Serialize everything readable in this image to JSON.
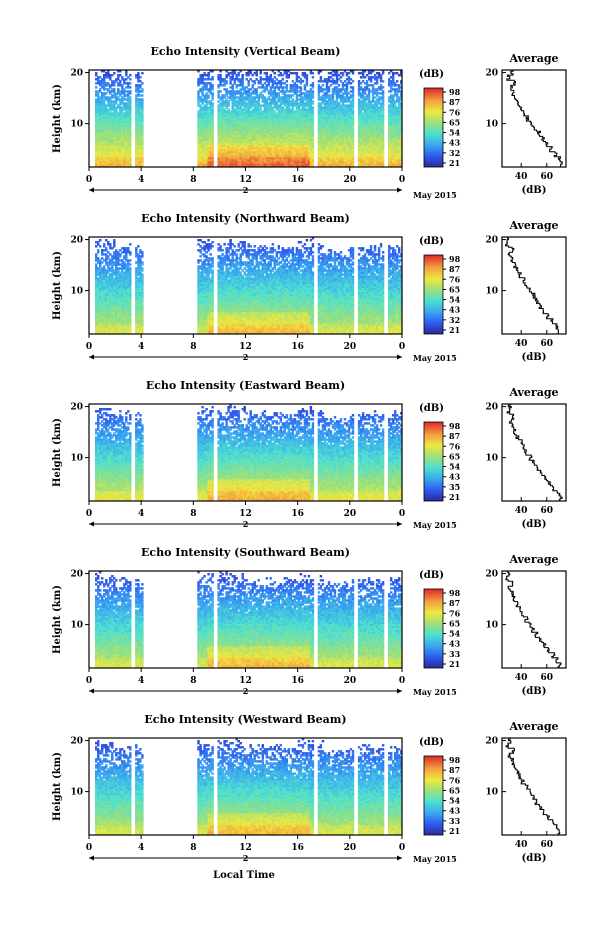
{
  "figure": {
    "date_label": "May 2015",
    "xlabel": "Local Time",
    "day_label": "2"
  },
  "chart_data": [
    {
      "type": "heatmap",
      "title": "Echo Intensity (Vertical Beam)",
      "ylabel": "Height (km)",
      "x_ticks": [
        "0",
        "4",
        "8",
        "12",
        "16",
        "20",
        "0"
      ],
      "y_ticks": [
        "10",
        "20"
      ],
      "xlim": [
        0,
        24
      ],
      "ylim": [
        1.5,
        20.5
      ],
      "colorbar": {
        "unit": "(dB)",
        "ticks": [
          "98",
          "87",
          "76",
          "65",
          "54",
          "43",
          "32",
          "21"
        ],
        "range": [
          21,
          98
        ]
      },
      "profile": {
        "title": "Average",
        "xlabel": "(dB)",
        "x_ticks": [
          "40",
          "60"
        ],
        "y_ticks": [
          "10",
          "20"
        ],
        "xlim": [
          25,
          75
        ],
        "heights": [
          2,
          3,
          4,
          5,
          6,
          7,
          8,
          9,
          10,
          11,
          12,
          13,
          14,
          15,
          16,
          17,
          18,
          19,
          20
        ],
        "values": [
          72,
          70,
          67,
          63,
          60,
          57,
          54,
          51,
          48,
          45,
          43,
          40,
          38,
          35,
          34,
          33,
          35,
          30,
          33
        ]
      },
      "missing_hours": [
        [
          0,
          0.5
        ],
        [
          3.2,
          3.5
        ],
        [
          4.2,
          8.3
        ],
        [
          9.5,
          9.8
        ],
        [
          17.2,
          17.6
        ],
        [
          20.3,
          20.6
        ],
        [
          22.6,
          23.0
        ]
      ],
      "top_km": [
        20,
        20,
        20,
        20,
        20,
        20,
        20,
        20,
        20,
        20,
        20,
        20,
        20
      ],
      "surface_db": 80
    },
    {
      "type": "heatmap",
      "title": "Echo Intensity (Northward Beam)",
      "ylabel": "Height (km)",
      "x_ticks": [
        "0",
        "4",
        "8",
        "12",
        "16",
        "20",
        "0"
      ],
      "y_ticks": [
        "10",
        "20"
      ],
      "xlim": [
        0,
        24
      ],
      "ylim": [
        1.5,
        20.5
      ],
      "colorbar": {
        "unit": "(dB)",
        "ticks": [
          "98",
          "87",
          "76",
          "65",
          "54",
          "43",
          "32",
          "21"
        ],
        "range": [
          21,
          98
        ]
      },
      "profile": {
        "title": "Average",
        "xlabel": "(dB)",
        "x_ticks": [
          "40",
          "60"
        ],
        "y_ticks": [
          "10",
          "20"
        ],
        "xlim": [
          25,
          75
        ],
        "heights": [
          2,
          3,
          4,
          5,
          6,
          7,
          8,
          9,
          10,
          11,
          12,
          13,
          14,
          15,
          16,
          17,
          18,
          19,
          20
        ],
        "values": [
          70,
          68,
          64,
          61,
          58,
          55,
          52,
          50,
          47,
          44,
          42,
          39,
          37,
          35,
          33,
          31,
          33,
          29,
          30
        ]
      },
      "missing_hours": [
        [
          0,
          0.5
        ],
        [
          3.2,
          3.5
        ],
        [
          4.2,
          8.3
        ],
        [
          9.5,
          9.8
        ],
        [
          17.2,
          17.6
        ],
        [
          20.3,
          20.6
        ],
        [
          22.6,
          23.0
        ]
      ],
      "top_km": [
        19,
        18,
        17,
        15,
        19,
        19,
        18,
        18,
        19,
        17,
        18,
        18,
        19
      ],
      "surface_db": 70
    },
    {
      "type": "heatmap",
      "title": "Echo Intensity (Eastward Beam)",
      "ylabel": "Height (km)",
      "x_ticks": [
        "0",
        "4",
        "8",
        "12",
        "16",
        "20",
        "0"
      ],
      "y_ticks": [
        "10",
        "20"
      ],
      "xlim": [
        0,
        24
      ],
      "ylim": [
        1.5,
        20.5
      ],
      "colorbar": {
        "unit": "(dB)",
        "ticks": [
          "98",
          "87",
          "76",
          "65",
          "54",
          "43",
          "35",
          "21"
        ],
        "range": [
          21,
          98
        ]
      },
      "profile": {
        "title": "Average",
        "xlabel": "(dB)",
        "x_ticks": [
          "40",
          "60"
        ],
        "y_ticks": [
          "10",
          "20"
        ],
        "xlim": [
          25,
          75
        ],
        "heights": [
          2,
          3,
          4,
          5,
          6,
          7,
          8,
          9,
          10,
          11,
          12,
          13,
          14,
          15,
          16,
          17,
          18,
          19,
          20
        ],
        "values": [
          71,
          69,
          65,
          62,
          59,
          56,
          53,
          50,
          47,
          44,
          42,
          40,
          37,
          35,
          33,
          32,
          34,
          30,
          31
        ]
      },
      "missing_hours": [
        [
          0,
          0.5
        ],
        [
          3.2,
          3.5
        ],
        [
          4.2,
          8.3
        ],
        [
          9.5,
          9.8
        ],
        [
          17.2,
          17.6
        ],
        [
          20.3,
          20.6
        ],
        [
          22.6,
          23.0
        ]
      ],
      "top_km": [
        19,
        18,
        17,
        15,
        19,
        19,
        18,
        18,
        19,
        17,
        18,
        18,
        19
      ],
      "surface_db": 72
    },
    {
      "type": "heatmap",
      "title": "Echo Intensity (Southward Beam)",
      "ylabel": "Height (km)",
      "x_ticks": [
        "0",
        "4",
        "8",
        "12",
        "16",
        "20",
        "0"
      ],
      "y_ticks": [
        "10",
        "20"
      ],
      "xlim": [
        0,
        24
      ],
      "ylim": [
        1.5,
        20.5
      ],
      "colorbar": {
        "unit": "(dB)",
        "ticks": [
          "98",
          "87",
          "76",
          "65",
          "54",
          "43",
          "33",
          "21"
        ],
        "range": [
          21,
          98
        ]
      },
      "profile": {
        "title": "Average",
        "xlabel": "(dB)",
        "x_ticks": [
          "40",
          "60"
        ],
        "y_ticks": [
          "10",
          "20"
        ],
        "xlim": [
          25,
          75
        ],
        "heights": [
          2,
          3,
          4,
          5,
          6,
          7,
          8,
          9,
          10,
          11,
          12,
          13,
          14,
          15,
          16,
          17,
          18,
          19,
          20
        ],
        "values": [
          70,
          68,
          65,
          61,
          58,
          55,
          52,
          49,
          47,
          44,
          41,
          39,
          37,
          34,
          33,
          31,
          33,
          29,
          30
        ]
      },
      "missing_hours": [
        [
          0,
          0.5
        ],
        [
          3.2,
          3.5
        ],
        [
          4.2,
          8.3
        ],
        [
          9.5,
          9.8
        ],
        [
          17.2,
          17.6
        ],
        [
          20.3,
          20.6
        ],
        [
          22.6,
          23.0
        ]
      ],
      "top_km": [
        19,
        18,
        17,
        15,
        19,
        19,
        18,
        18,
        19,
        17,
        18,
        18,
        19
      ],
      "surface_db": 70
    },
    {
      "type": "heatmap",
      "title": "Echo Intensity (Westward Beam)",
      "ylabel": "Height (km)",
      "x_ticks": [
        "0",
        "4",
        "8",
        "12",
        "16",
        "20",
        "0"
      ],
      "y_ticks": [
        "10",
        "20"
      ],
      "xlim": [
        0,
        24
      ],
      "ylim": [
        1.5,
        20.5
      ],
      "colorbar": {
        "unit": "(dB)",
        "ticks": [
          "98",
          "87",
          "76",
          "65",
          "54",
          "43",
          "33",
          "21"
        ],
        "range": [
          21,
          98
        ]
      },
      "profile": {
        "title": "Average",
        "xlabel": "(dB)",
        "x_ticks": [
          "40",
          "60"
        ],
        "y_ticks": [
          "10",
          "20"
        ],
        "xlim": [
          25,
          75
        ],
        "heights": [
          2,
          3,
          4,
          5,
          6,
          7,
          8,
          9,
          10,
          11,
          12,
          13,
          14,
          15,
          16,
          17,
          18,
          19,
          20
        ],
        "values": [
          70,
          68,
          65,
          61,
          58,
          55,
          52,
          49,
          47,
          44,
          41,
          39,
          37,
          34,
          33,
          31,
          34,
          29,
          31
        ]
      },
      "missing_hours": [
        [
          0,
          0.5
        ],
        [
          3.2,
          3.5
        ],
        [
          4.2,
          8.3
        ],
        [
          9.5,
          9.8
        ],
        [
          17.2,
          17.6
        ],
        [
          20.3,
          20.6
        ],
        [
          22.6,
          23.0
        ]
      ],
      "top_km": [
        19,
        18,
        17,
        15,
        19,
        19,
        18,
        18,
        19,
        17,
        18,
        18,
        19
      ],
      "surface_db": 70
    }
  ]
}
